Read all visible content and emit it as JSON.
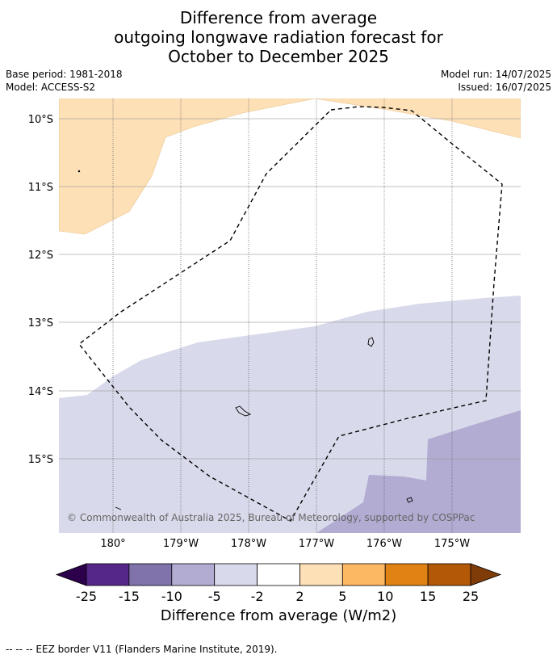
{
  "header": {
    "title_lines": [
      "Difference from average",
      "outgoing longwave radiation forecast for",
      "October to December 2025"
    ],
    "base_period": "Base period: 1981-2018",
    "model": "Model: ACCESS-S2",
    "model_run": "Model run: 14/07/2025",
    "issued": "Issued: 16/07/2025"
  },
  "map": {
    "lat_labels": [
      "10°S",
      "11°S",
      "12°S",
      "13°S",
      "14°S",
      "15°S"
    ],
    "lon_labels": [
      "180°",
      "179°W",
      "178°W",
      "177°W",
      "176°W",
      "175°W"
    ],
    "copyright": "© Commonwealth of Australia 2025, Bureau of Meteorology, supported by COSPPac",
    "region_colors": {
      "positive_2_to_5": "#fde0b6",
      "negative_2_to_5": "#d8d9ea",
      "negative_5_to_10": "#b2abd2",
      "neutral": "#ffffff"
    }
  },
  "colorbar": {
    "ticks": [
      "-25",
      "-15",
      "-10",
      "-5",
      "-2",
      "2",
      "5",
      "10",
      "15",
      "25"
    ],
    "colors": [
      "#542788",
      "#8073ac",
      "#b2abd2",
      "#d8daeb",
      "#ffffff",
      "#fee0b6",
      "#fdb863",
      "#e08214",
      "#b35806"
    ],
    "extend_low_color": "#2d004b",
    "extend_high_color": "#7f3b08",
    "label": "Difference from average (W/m2)"
  },
  "footer": {
    "legend_text": "--  --  -- EEZ border V11 (Flanders Marine Institute, 2019)."
  }
}
